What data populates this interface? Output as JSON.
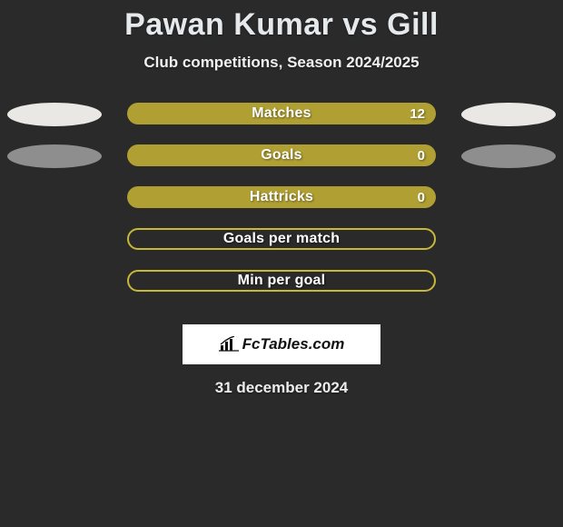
{
  "title": "Pawan Kumar vs Gill",
  "subtitle": "Club competitions, Season 2024/2025",
  "date": "31 december 2024",
  "logo_text": "FcTables.com",
  "colors": {
    "accent": "#b0a033",
    "accent_border": "#c7b83a",
    "oval_light": "#e9e8e4",
    "oval_gray": "#8e8e8e",
    "background": "#2a2a2a"
  },
  "rows": [
    {
      "label": "Matches",
      "value": "12",
      "filled": true,
      "oval_left": true,
      "oval_left_color": "#e9e8e4",
      "oval_right": true,
      "oval_right_color": "#e9e8e4"
    },
    {
      "label": "Goals",
      "value": "0",
      "filled": true,
      "oval_left": true,
      "oval_left_color": "#8e8e8e",
      "oval_right": true,
      "oval_right_color": "#8e8e8e"
    },
    {
      "label": "Hattricks",
      "value": "0",
      "filled": true,
      "oval_left": false,
      "oval_right": false
    },
    {
      "label": "Goals per match",
      "value": "",
      "filled": false,
      "oval_left": false,
      "oval_right": false
    },
    {
      "label": "Min per goal",
      "value": "",
      "filled": false,
      "oval_left": false,
      "oval_right": false
    }
  ]
}
